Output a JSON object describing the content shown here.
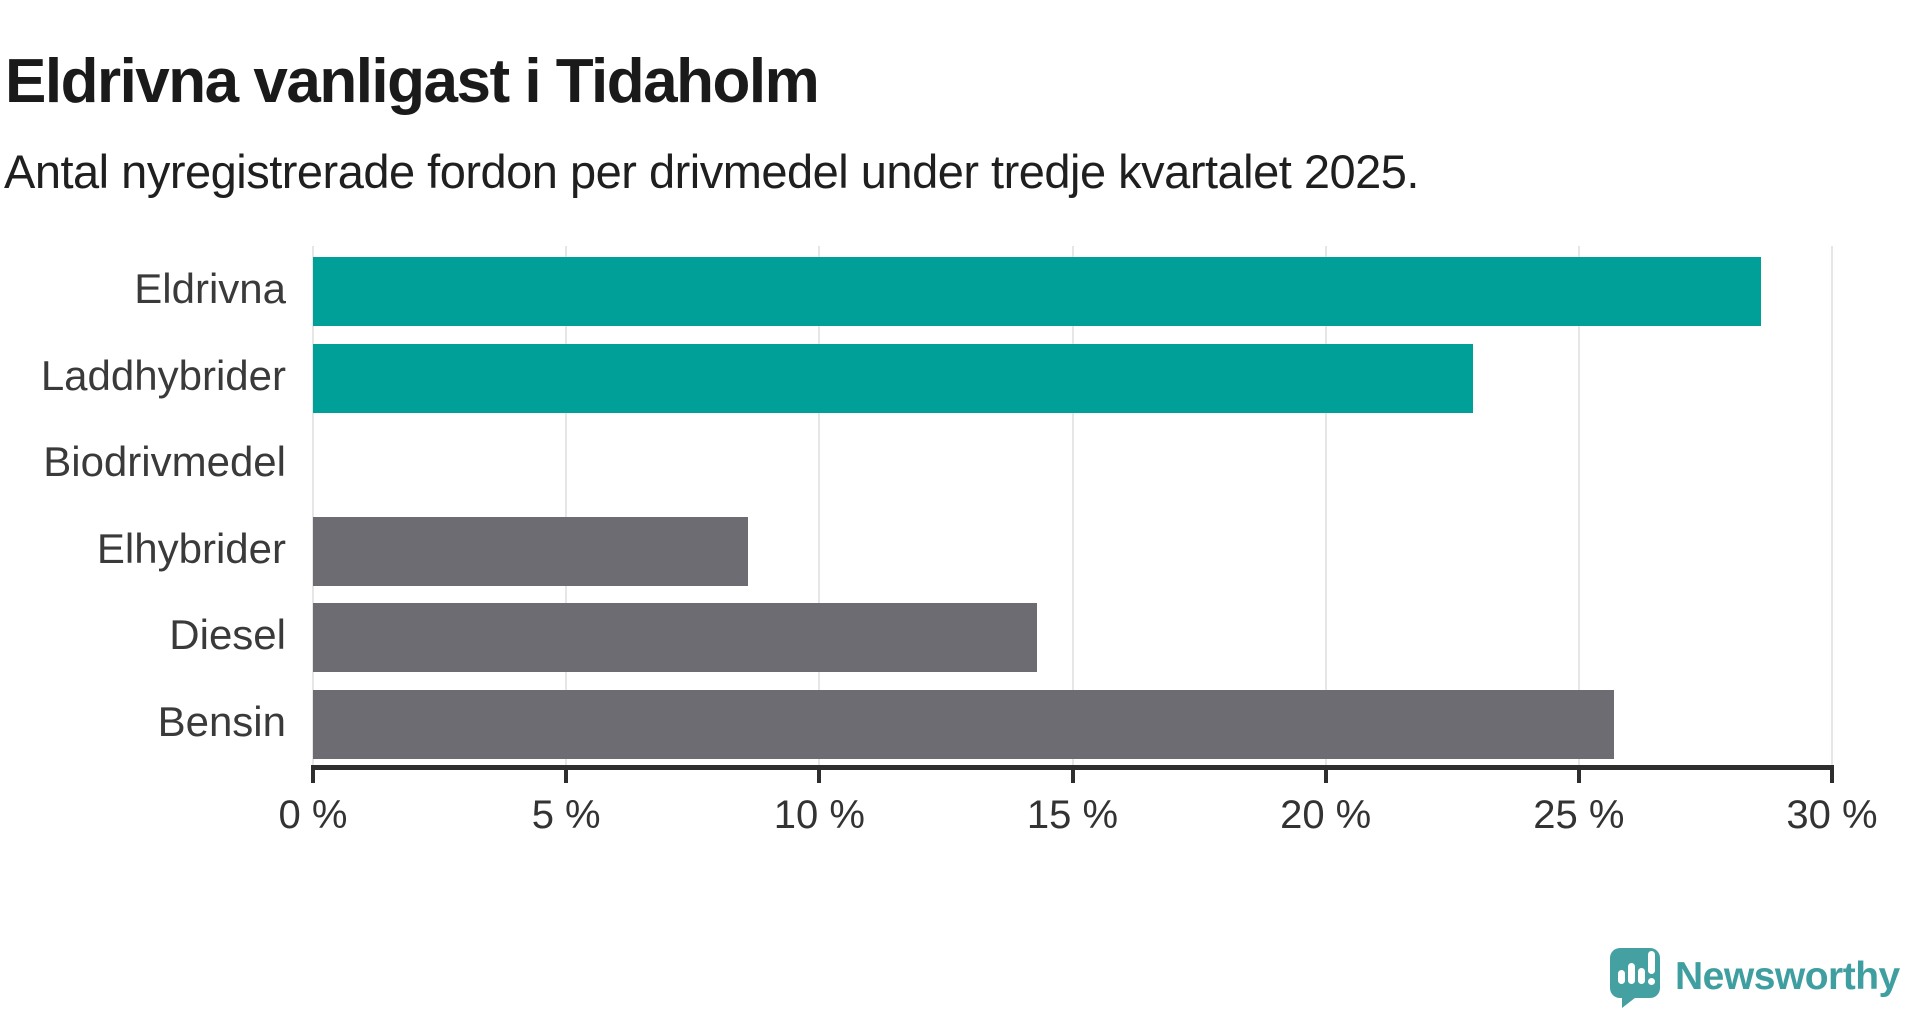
{
  "header": {
    "title": "Eldrivna vanligast i Tidaholm",
    "subtitle": "Antal nyregistrerade fordon per drivmedel under tredje kvartalet 2025."
  },
  "chart_data": {
    "type": "bar",
    "orientation": "horizontal",
    "title": "Eldrivna vanligast i Tidaholm",
    "subtitle": "Antal nyregistrerade fordon per drivmedel under tredje kvartalet 2025.",
    "categories": [
      "Eldrivna",
      "Laddhybrider",
      "Biodrivmedel",
      "Elhybrider",
      "Diesel",
      "Bensin"
    ],
    "values": [
      28.6,
      22.9,
      0,
      8.6,
      14.3,
      25.7
    ],
    "bar_colors": [
      "#00a099",
      "#00a099",
      "#6c6c72",
      "#6c6c72",
      "#6c6c72",
      "#6c6c72"
    ],
    "xlabel": "",
    "ylabel": "",
    "xlim": [
      0,
      30
    ],
    "x_tick_values": [
      0,
      5,
      10,
      15,
      20,
      25,
      30
    ],
    "x_tick_labels": [
      "0 %",
      "5 %",
      "10 %",
      "15 %",
      "20 %",
      "25 %",
      "30 %"
    ],
    "grid": "vertical-gridlines-behind-bars",
    "legend": "none"
  },
  "branding": {
    "logo_text": "Newsworthy",
    "logo_icon": "speech-bubble-with-bar-chart-and-exclamation",
    "logo_color": "#45a1a1"
  },
  "colors": {
    "teal_bar": "#00a099",
    "gray_bar": "#6c6c72",
    "axis": "#2e2e2e",
    "gridline": "#e6e6e6",
    "title_text": "#1a1a1a",
    "label_text": "#3a3a3a",
    "tick_text": "#333333"
  }
}
